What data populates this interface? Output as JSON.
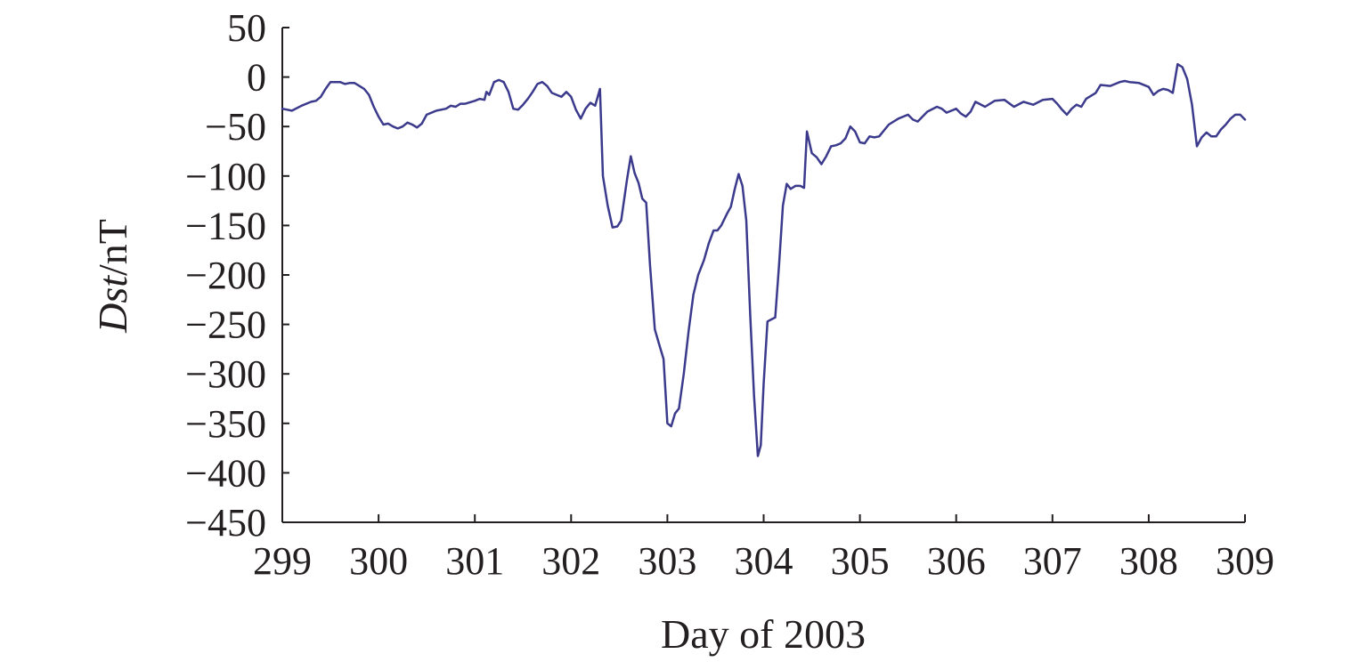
{
  "chart_data": {
    "type": "line",
    "xlabel": "Day of 2003",
    "ylabel": {
      "italic": "Dst",
      "rest": "/nT"
    },
    "xlim": [
      299,
      309
    ],
    "ylim": [
      -450,
      50
    ],
    "xticks": [
      299,
      300,
      301,
      302,
      303,
      304,
      305,
      306,
      307,
      308,
      309
    ],
    "yticks": [
      50,
      0,
      -50,
      -100,
      -150,
      -200,
      -250,
      -300,
      -350,
      -400,
      -450
    ],
    "xtick_labels": [
      "299",
      "300",
      "301",
      "302",
      "303",
      "304",
      "305",
      "306",
      "307",
      "308",
      "309"
    ],
    "ytick_labels": [
      "50",
      "0",
      "−50",
      "−100",
      "−150",
      "−200",
      "−250",
      "−300",
      "−350",
      "−400",
      "−450"
    ],
    "grid": false,
    "series": [
      {
        "color": "#3b3a8c",
        "points": [
          [
            299.0,
            -32
          ],
          [
            299.1,
            -34
          ],
          [
            299.2,
            -29
          ],
          [
            299.3,
            -25
          ],
          [
            299.35,
            -24
          ],
          [
            299.4,
            -20
          ],
          [
            299.45,
            -12
          ],
          [
            299.5,
            -5
          ],
          [
            299.55,
            -5
          ],
          [
            299.6,
            -5
          ],
          [
            299.65,
            -7
          ],
          [
            299.7,
            -6
          ],
          [
            299.75,
            -6
          ],
          [
            299.8,
            -9
          ],
          [
            299.85,
            -12
          ],
          [
            299.9,
            -18
          ],
          [
            299.95,
            -30
          ],
          [
            300.0,
            -40
          ],
          [
            300.05,
            -48
          ],
          [
            300.1,
            -47
          ],
          [
            300.15,
            -50
          ],
          [
            300.2,
            -52
          ],
          [
            300.25,
            -50
          ],
          [
            300.3,
            -46
          ],
          [
            300.35,
            -48
          ],
          [
            300.4,
            -51
          ],
          [
            300.45,
            -47
          ],
          [
            300.5,
            -38
          ],
          [
            300.6,
            -34
          ],
          [
            300.7,
            -32
          ],
          [
            300.75,
            -29
          ],
          [
            300.8,
            -30
          ],
          [
            300.85,
            -27
          ],
          [
            300.9,
            -27
          ],
          [
            301.0,
            -24
          ],
          [
            301.05,
            -22
          ],
          [
            301.1,
            -23
          ],
          [
            301.12,
            -15
          ],
          [
            301.15,
            -18
          ],
          [
            301.2,
            -5
          ],
          [
            301.25,
            -3
          ],
          [
            301.3,
            -5
          ],
          [
            301.35,
            -15
          ],
          [
            301.4,
            -32
          ],
          [
            301.45,
            -33
          ],
          [
            301.5,
            -28
          ],
          [
            301.55,
            -22
          ],
          [
            301.6,
            -15
          ],
          [
            301.65,
            -7
          ],
          [
            301.7,
            -5
          ],
          [
            301.75,
            -9
          ],
          [
            301.8,
            -16
          ],
          [
            301.85,
            -18
          ],
          [
            301.9,
            -20
          ],
          [
            301.95,
            -15
          ],
          [
            302.0,
            -20
          ],
          [
            302.05,
            -33
          ],
          [
            302.1,
            -42
          ],
          [
            302.15,
            -32
          ],
          [
            302.2,
            -26
          ],
          [
            302.25,
            -29
          ],
          [
            302.3,
            -12
          ],
          [
            302.33,
            -100
          ],
          [
            302.38,
            -130
          ],
          [
            302.43,
            -152
          ],
          [
            302.48,
            -151
          ],
          [
            302.52,
            -145
          ],
          [
            302.58,
            -104
          ],
          [
            302.62,
            -80
          ],
          [
            302.66,
            -97
          ],
          [
            302.7,
            -107
          ],
          [
            302.74,
            -123
          ],
          [
            302.78,
            -127
          ],
          [
            302.82,
            -190
          ],
          [
            302.87,
            -255
          ],
          [
            302.92,
            -272
          ],
          [
            302.96,
            -285
          ],
          [
            303.0,
            -350
          ],
          [
            303.04,
            -353
          ],
          [
            303.08,
            -340
          ],
          [
            303.12,
            -335
          ],
          [
            303.17,
            -300
          ],
          [
            303.22,
            -257
          ],
          [
            303.27,
            -220
          ],
          [
            303.32,
            -200
          ],
          [
            303.38,
            -185
          ],
          [
            303.43,
            -168
          ],
          [
            303.48,
            -155
          ],
          [
            303.52,
            -155
          ],
          [
            303.56,
            -150
          ],
          [
            303.62,
            -138
          ],
          [
            303.66,
            -131
          ],
          [
            303.7,
            -113
          ],
          [
            303.74,
            -98
          ],
          [
            303.78,
            -110
          ],
          [
            303.82,
            -145
          ],
          [
            303.86,
            -240
          ],
          [
            303.9,
            -322
          ],
          [
            303.94,
            -383
          ],
          [
            303.97,
            -372
          ],
          [
            304.0,
            -310
          ],
          [
            304.04,
            -247
          ],
          [
            304.08,
            -245
          ],
          [
            304.12,
            -243
          ],
          [
            304.16,
            -190
          ],
          [
            304.2,
            -130
          ],
          [
            304.24,
            -108
          ],
          [
            304.28,
            -113
          ],
          [
            304.33,
            -110
          ],
          [
            304.38,
            -110
          ],
          [
            304.42,
            -112
          ],
          [
            304.45,
            -55
          ],
          [
            304.5,
            -77
          ],
          [
            304.55,
            -81
          ],
          [
            304.6,
            -88
          ],
          [
            304.65,
            -80
          ],
          [
            304.7,
            -70
          ],
          [
            304.75,
            -69
          ],
          [
            304.8,
            -67
          ],
          [
            304.85,
            -62
          ],
          [
            304.9,
            -50
          ],
          [
            304.95,
            -55
          ],
          [
            305.0,
            -66
          ],
          [
            305.05,
            -67
          ],
          [
            305.1,
            -60
          ],
          [
            305.15,
            -61
          ],
          [
            305.2,
            -60
          ],
          [
            305.3,
            -48
          ],
          [
            305.4,
            -42
          ],
          [
            305.5,
            -38
          ],
          [
            305.55,
            -43
          ],
          [
            305.6,
            -45
          ],
          [
            305.7,
            -35
          ],
          [
            305.8,
            -30
          ],
          [
            305.85,
            -32
          ],
          [
            305.9,
            -36
          ],
          [
            306.0,
            -32
          ],
          [
            306.05,
            -37
          ],
          [
            306.1,
            -40
          ],
          [
            306.15,
            -35
          ],
          [
            306.2,
            -25
          ],
          [
            306.3,
            -30
          ],
          [
            306.4,
            -24
          ],
          [
            306.5,
            -23
          ],
          [
            306.6,
            -30
          ],
          [
            306.7,
            -25
          ],
          [
            306.8,
            -28
          ],
          [
            306.9,
            -23
          ],
          [
            307.0,
            -22
          ],
          [
            307.05,
            -27
          ],
          [
            307.1,
            -33
          ],
          [
            307.15,
            -38
          ],
          [
            307.2,
            -32
          ],
          [
            307.25,
            -28
          ],
          [
            307.3,
            -30
          ],
          [
            307.35,
            -22
          ],
          [
            307.45,
            -16
          ],
          [
            307.5,
            -8
          ],
          [
            307.6,
            -9
          ],
          [
            307.7,
            -5
          ],
          [
            307.75,
            -4
          ],
          [
            307.8,
            -5
          ],
          [
            307.9,
            -6
          ],
          [
            308.0,
            -10
          ],
          [
            308.05,
            -18
          ],
          [
            308.1,
            -14
          ],
          [
            308.15,
            -12
          ],
          [
            308.2,
            -13
          ],
          [
            308.25,
            -16
          ],
          [
            308.3,
            13
          ],
          [
            308.35,
            10
          ],
          [
            308.4,
            -2
          ],
          [
            308.45,
            -28
          ],
          [
            308.5,
            -70
          ],
          [
            308.55,
            -61
          ],
          [
            308.6,
            -56
          ],
          [
            308.65,
            -60
          ],
          [
            308.7,
            -60
          ],
          [
            308.75,
            -53
          ],
          [
            308.8,
            -48
          ],
          [
            308.85,
            -42
          ],
          [
            308.9,
            -38
          ],
          [
            308.95,
            -38
          ],
          [
            309.0,
            -43
          ]
        ]
      }
    ]
  }
}
